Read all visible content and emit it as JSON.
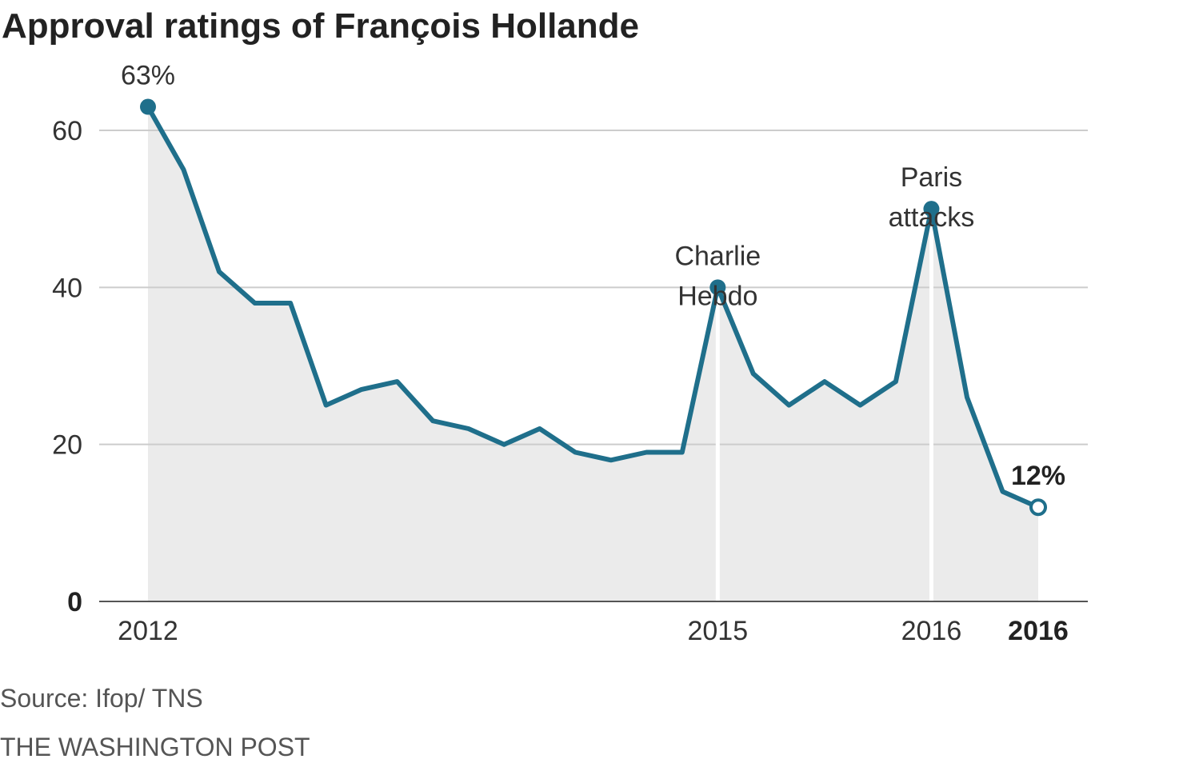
{
  "colors": {
    "line": "#1f6f8b",
    "area": "#ebebeb",
    "grid": "#cccccc",
    "baseline": "#555555",
    "event_line": "#ffffff"
  },
  "chart_data": {
    "type": "line",
    "title": "Approval ratings of François Hollande",
    "xlabel": "",
    "ylabel": "",
    "ylim": [
      0,
      63
    ],
    "y_ticks": [
      {
        "value": 0,
        "label": "0",
        "bold": true
      },
      {
        "value": 20,
        "label": "20",
        "bold": false
      },
      {
        "value": 40,
        "label": "40",
        "bold": false
      },
      {
        "value": 60,
        "label": "60",
        "bold": false
      }
    ],
    "x_ticks": [
      {
        "index": 0,
        "label": "2012",
        "bold": false
      },
      {
        "index": 16,
        "label": "2015",
        "bold": false
      },
      {
        "index": 22,
        "label": "2016",
        "bold": false
      },
      {
        "index": 25,
        "label": "2016",
        "bold": true
      }
    ],
    "values": [
      63,
      55,
      42,
      38,
      38,
      25,
      27,
      28,
      23,
      22,
      20,
      22,
      19,
      18,
      19,
      19,
      40,
      29,
      25,
      28,
      25,
      28,
      50,
      26,
      14,
      12
    ],
    "area_fill": true,
    "grid": "horizontal",
    "event_lines": [
      16,
      22
    ],
    "markers": [
      {
        "index": 0,
        "style": "filled"
      },
      {
        "index": 16,
        "style": "filled"
      },
      {
        "index": 22,
        "style": "filled"
      },
      {
        "index": 25,
        "style": "open"
      }
    ],
    "annotations": [
      {
        "index": 0,
        "lines": [
          "63%"
        ],
        "bold": false
      },
      {
        "index": 16,
        "lines": [
          "Charlie",
          "Hebdo"
        ],
        "bold": false
      },
      {
        "index": 22,
        "lines": [
          "Paris",
          "attacks"
        ],
        "bold": false
      },
      {
        "index": 25,
        "lines": [
          "12%"
        ],
        "bold": true
      }
    ]
  },
  "footer": {
    "source": "Source: Ifop/ TNS",
    "credit": "THE WASHINGTON POST"
  }
}
